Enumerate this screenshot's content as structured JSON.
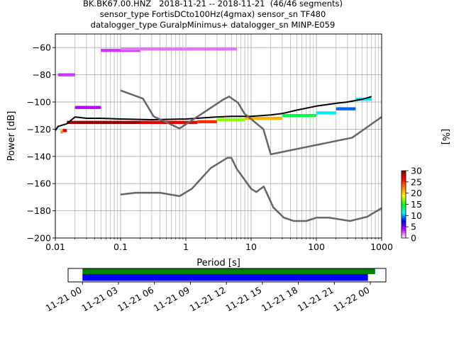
{
  "title_lines": [
    "BK.BK67.00.HNZ   2018-11-21 -- 2018-11-21  (46/46 segments)",
    "sensor_type FortisDCto100Hz(4gmax) sensor_sn TF480",
    "datalogger_type GuralpMinimus+ datalogger_sn MINP-E059"
  ],
  "chart_data": {
    "type": "heatmap",
    "xlabel": "Period [s]",
    "ylabel": "Power [dB]",
    "xscale": "log",
    "xlim": [
      0.01,
      1000
    ],
    "ylim": [
      -200,
      -50
    ],
    "xticks": [
      0.01,
      0.1,
      1,
      10,
      100,
      1000
    ],
    "xtick_labels": [
      "0.01",
      "0.1",
      "1",
      "10",
      "100",
      "1000"
    ],
    "yticks": [
      -200,
      -180,
      -160,
      -140,
      -120,
      -100,
      -80,
      -60
    ],
    "ytick_labels": [
      "−200",
      "−180",
      "−160",
      "−140",
      "−120",
      "−100",
      "−80",
      "−60"
    ],
    "grid": true,
    "colorbar": {
      "label": "[%]",
      "range": [
        0,
        30
      ],
      "ticks": [
        0,
        5,
        10,
        15,
        20,
        25,
        30
      ],
      "tick_labels": [
        "0",
        "5",
        "10",
        "15",
        "20",
        "25",
        "30"
      ]
    },
    "colormap_stops": [
      "#ffffff",
      "#c800ff",
      "#0000ff",
      "#00ffff",
      "#00ff00",
      "#ffff00",
      "#ff8000",
      "#ff0000",
      "#800000"
    ],
    "series": [
      {
        "role": "mean",
        "color": "#000000",
        "points": [
          [
            0.01,
            -121
          ],
          [
            0.011,
            -118
          ],
          [
            0.015,
            -116
          ],
          [
            0.02,
            -111
          ],
          [
            0.03,
            -112
          ],
          [
            0.05,
            -112
          ],
          [
            0.1,
            -112.5
          ],
          [
            0.3,
            -113
          ],
          [
            1,
            -112.5
          ],
          [
            3,
            -111
          ],
          [
            5,
            -110.5
          ],
          [
            10,
            -110.5
          ],
          [
            20,
            -109.5
          ],
          [
            30,
            -108.5
          ],
          [
            50,
            -106
          ],
          [
            100,
            -103
          ],
          [
            200,
            -101
          ],
          [
            300,
            -100
          ],
          [
            500,
            -98
          ],
          [
            600,
            -97
          ],
          [
            700,
            -96
          ]
        ]
      },
      {
        "role": "new-high-noise-model",
        "color": "#666666",
        "points": [
          [
            0.1,
            -91.5
          ],
          [
            0.22,
            -97.5
          ],
          [
            0.32,
            -110.5
          ],
          [
            0.8,
            -119.5
          ],
          [
            3.8,
            -98
          ],
          [
            4.6,
            -96
          ],
          [
            6.3,
            -100.5
          ],
          [
            7.9,
            -108.5
          ],
          [
            15.4,
            -120
          ],
          [
            20,
            -138.5
          ],
          [
            354.8,
            -126.2
          ],
          [
            1000,
            -111
          ]
        ]
      },
      {
        "role": "new-low-noise-model",
        "color": "#666666",
        "points": [
          [
            0.1,
            -168
          ],
          [
            0.17,
            -166.7
          ],
          [
            0.4,
            -166.7
          ],
          [
            0.8,
            -169.2
          ],
          [
            1.24,
            -163.7
          ],
          [
            2.4,
            -148.6
          ],
          [
            4.3,
            -141.1
          ],
          [
            5,
            -141.1
          ],
          [
            6,
            -149
          ],
          [
            10,
            -163.8
          ],
          [
            12,
            -166.2
          ],
          [
            15.6,
            -162.1
          ],
          [
            21.9,
            -177.5
          ],
          [
            31.6,
            -185
          ],
          [
            45,
            -187.5
          ],
          [
            70,
            -187.5
          ],
          [
            101,
            -185
          ],
          [
            154,
            -185
          ],
          [
            328,
            -187.5
          ],
          [
            600,
            -184.4
          ],
          [
            1000,
            -178
          ]
        ]
      }
    ],
    "density": [
      {
        "period": [
          0.012,
          0.013
        ],
        "power": -122,
        "percent": 22
      },
      {
        "period": [
          0.013,
          0.015
        ],
        "power": -121,
        "percent": 27
      },
      {
        "period": [
          0.015,
          0.2
        ],
        "power": -115,
        "percent": 29
      },
      {
        "period": [
          0.2,
          1.5
        ],
        "power": -115,
        "percent": 27
      },
      {
        "period": [
          1.5,
          3
        ],
        "power": -114.5,
        "percent": 25
      },
      {
        "period": [
          3,
          8
        ],
        "power": -113,
        "percent": 17
      },
      {
        "period": [
          8,
          30
        ],
        "power": -112,
        "percent": 21
      },
      {
        "period": [
          30,
          100
        ],
        "power": -110,
        "percent": 14
      },
      {
        "period": [
          100,
          200
        ],
        "power": -108,
        "percent": 11
      },
      {
        "period": [
          200,
          400
        ],
        "power": -105,
        "percent": 9
      },
      {
        "period": [
          400,
          700
        ],
        "power": -98,
        "percent": 11
      },
      {
        "period": [
          0.011,
          0.02
        ],
        "power": -80,
        "percent": 3
      },
      {
        "period": [
          0.02,
          0.05
        ],
        "power": -104,
        "percent": 4
      },
      {
        "period": [
          0.05,
          0.2
        ],
        "power": -62,
        "percent": 3
      },
      {
        "period": [
          0.1,
          6
        ],
        "power": -61,
        "percent": 2
      }
    ]
  },
  "timeline": {
    "tick_labels": [
      "11-21 00",
      "11-21 03",
      "11-21 06",
      "11-21 09",
      "11-21 12",
      "11-21 15",
      "11-21 18",
      "11-21 21",
      "11-22 00"
    ],
    "tick_hours": [
      0,
      3,
      6,
      9,
      12,
      15,
      18,
      21,
      24
    ],
    "xlim_hours": [
      -1.2,
      25.3
    ],
    "segments": [
      {
        "name": "data",
        "color": "#008000",
        "start_hours": 0,
        "end_hours": 24.4
      },
      {
        "name": "used",
        "color": "#0000ff",
        "start_hours": 0,
        "end_hours": 23.8
      }
    ]
  }
}
